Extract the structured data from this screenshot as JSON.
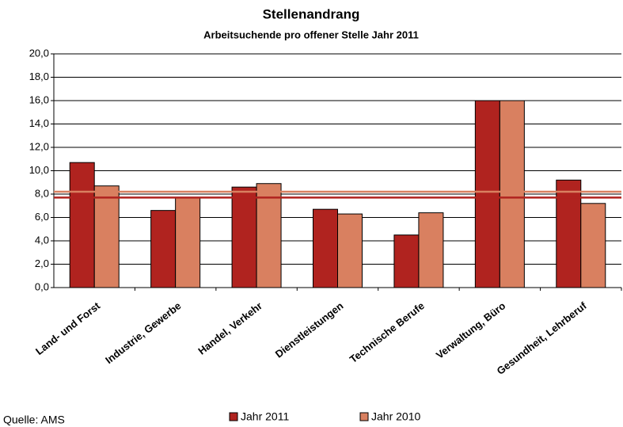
{
  "chart_data": {
    "type": "bar",
    "title": "Stellenandrang",
    "subtitle": "Arbeitsuchende pro offener Stelle Jahr 2011",
    "source": "Quelle: AMS",
    "categories": [
      "Land- und Forst",
      "Industrie, Gewerbe",
      "Handel, Verkehr",
      "Dienstleistungen",
      "Technische Berufe",
      "Verwaltung, Büro",
      "Gesundheit, Lehrberuf"
    ],
    "series": [
      {
        "name": "Jahr 2011",
        "color": "#b0231f",
        "values": [
          10.7,
          6.6,
          8.6,
          6.7,
          4.5,
          16.0,
          9.2
        ]
      },
      {
        "name": "Jahr 2010",
        "color": "#d98060",
        "values": [
          8.7,
          7.7,
          8.9,
          6.3,
          6.4,
          16.0,
          7.2
        ]
      }
    ],
    "reference_lines": [
      {
        "color": "#b0231f",
        "value": 7.7
      },
      {
        "color": "#d98060",
        "value": 8.2
      }
    ],
    "ylim": [
      0,
      20
    ],
    "yticks": [
      {
        "value": 0,
        "label": "0,0"
      },
      {
        "value": 2,
        "label": "2,0"
      },
      {
        "value": 4,
        "label": "4,0"
      },
      {
        "value": 6,
        "label": "6,0"
      },
      {
        "value": 8,
        "label": "8,0"
      },
      {
        "value": 10,
        "label": "10,0"
      },
      {
        "value": 12,
        "label": "12,0"
      },
      {
        "value": 14,
        "label": "14,0"
      },
      {
        "value": 16,
        "label": "16,0"
      },
      {
        "value": 18,
        "label": "18,0"
      },
      {
        "value": 20,
        "label": "20,0"
      }
    ],
    "grid": true
  }
}
